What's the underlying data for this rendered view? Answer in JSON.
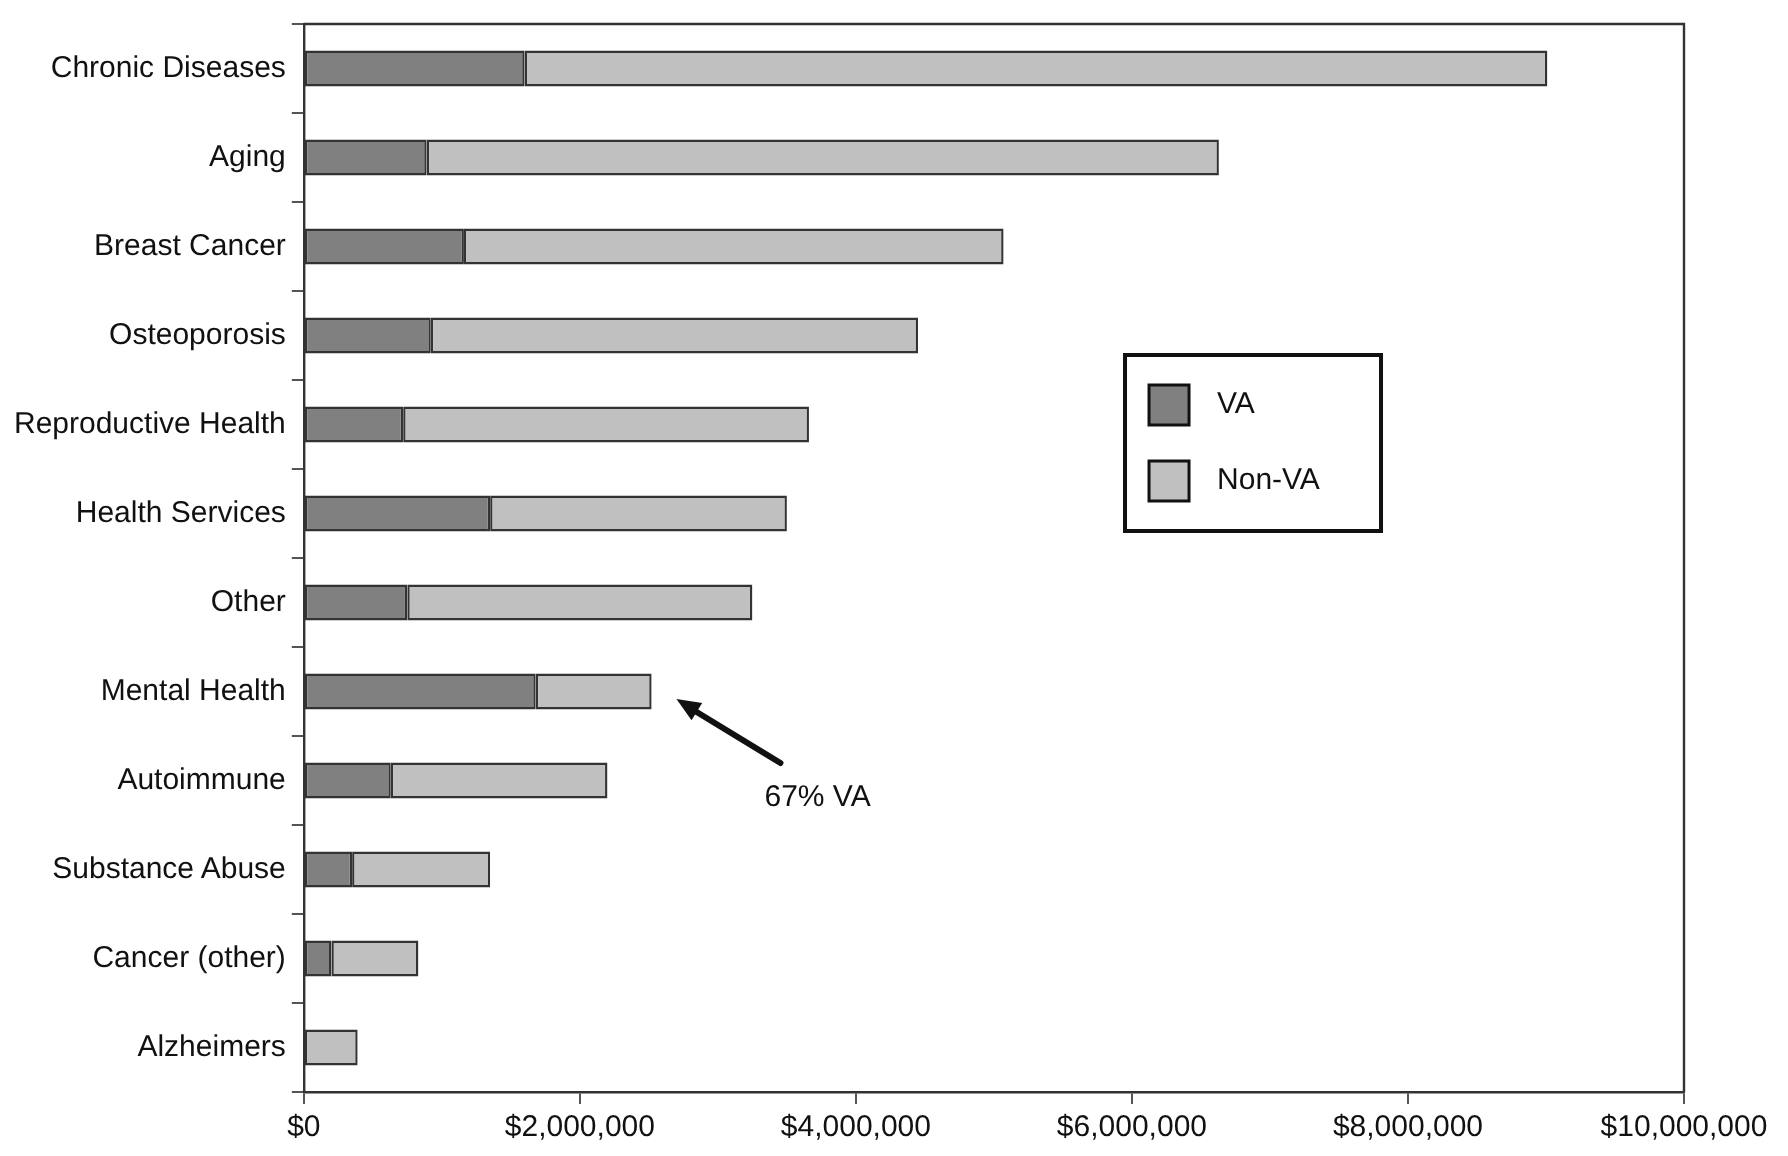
{
  "chart_data": {
    "type": "bar",
    "orientation": "horizontal",
    "stacked": true,
    "categories": [
      "Chronic Diseases",
      "Aging",
      "Breast Cancer",
      "Osteoporosis",
      "Reproductive Health",
      "Health Services",
      "Other",
      "Mental Health",
      "Autoimmune",
      "Substance Abuse",
      "Cancer (other)",
      "Alzheimers"
    ],
    "series": [
      {
        "name": "VA",
        "color": "#808080",
        "values": [
          1600000,
          890000,
          1160000,
          920000,
          720000,
          1350000,
          750000,
          1680000,
          630000,
          350000,
          200000,
          0
        ]
      },
      {
        "name": "Non-VA",
        "color": "#c0c0c0",
        "values": [
          7410000,
          5740000,
          3910000,
          3530000,
          2940000,
          2150000,
          2500000,
          840000,
          1570000,
          1000000,
          630000,
          390000
        ]
      }
    ],
    "xlim": [
      0,
      10000000
    ],
    "xticks": [
      {
        "value": 0,
        "label": "$0"
      },
      {
        "value": 2000000,
        "label": "$2,000,000"
      },
      {
        "value": 4000000,
        "label": "$4,000,000"
      },
      {
        "value": 6000000,
        "label": "$6,000,000"
      },
      {
        "value": 8000000,
        "label": "$8,000,000"
      },
      {
        "value": 10000000,
        "label": "$10,000,000"
      }
    ],
    "annotations": [
      "67% VA"
    ],
    "legend": "right",
    "grid": false
  }
}
